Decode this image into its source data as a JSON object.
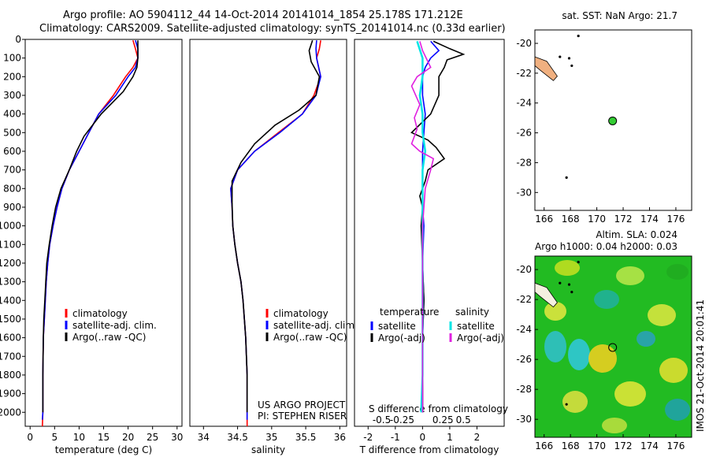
{
  "header": {
    "line1": "Argo profile: AO 5904112_44 14-Oct-2014 20141014_1854 25.178S 171.212E",
    "line2": "Climatology: CARS2009. Satellite-adjusted climatology: synTS_20141014.nc (0.33d earlier)"
  },
  "colors": {
    "climatology": "#ff0000",
    "satellite": "#0000ff",
    "argo": "#000000",
    "salinity_sat": "#00e5e5",
    "salinity_argo": "#e020e0",
    "land": "#f0b080",
    "float": "#33cc33"
  },
  "chart_data": [
    {
      "type": "line",
      "xlabel": "temperature (deg C)",
      "ylim": [
        2075,
        0
      ],
      "xlim": [
        -1,
        31
      ],
      "xticks": [
        0,
        5,
        10,
        15,
        20,
        25,
        30
      ],
      "yticks": [
        0,
        100,
        200,
        300,
        400,
        500,
        600,
        700,
        800,
        900,
        1000,
        1100,
        1200,
        1300,
        1400,
        1500,
        1600,
        1700,
        1800,
        1900,
        2000
      ],
      "legend": [
        "climatology",
        "satellite-adj. clim.",
        "Argo(..raw -QC)"
      ],
      "series": [
        {
          "name": "climatology",
          "color": "climatology",
          "x": [
            21,
            21.5,
            22,
            21,
            19.5,
            17,
            14,
            12,
            10,
            8,
            6.5,
            5.5,
            4.7,
            4,
            3.6,
            3.3,
            3.1,
            2.9,
            2.7,
            2.6,
            2.6,
            2.5
          ],
          "y": [
            5,
            50,
            100,
            150,
            200,
            300,
            400,
            500,
            600,
            700,
            800,
            900,
            1000,
            1100,
            1200,
            1300,
            1400,
            1500,
            1600,
            1800,
            2000,
            2075
          ]
        },
        {
          "name": "satellite-adj. clim.",
          "color": "satellite",
          "x": [
            21.5,
            22,
            22,
            21.5,
            20,
            17.5,
            14,
            12,
            10,
            8,
            6.5,
            5.5,
            4.7,
            4,
            3.6,
            3.3,
            3.1,
            2.9,
            2.7,
            2.6,
            2.6,
            2.5
          ],
          "y": [
            5,
            50,
            100,
            150,
            200,
            300,
            400,
            500,
            600,
            700,
            800,
            900,
            1000,
            1100,
            1200,
            1300,
            1400,
            1500,
            1600,
            1800,
            2000,
            2040
          ]
        },
        {
          "name": "Argo(..raw -QC)",
          "color": "argo",
          "x": [
            22,
            22,
            22,
            21.8,
            21,
            19,
            14.5,
            11,
            9.5,
            8,
            6.3,
            5.2,
            4.5,
            3.9,
            3.4,
            3.2,
            3,
            2.8,
            2.7,
            2.6,
            2.6
          ],
          "y": [
            5,
            50,
            100,
            150,
            200,
            280,
            400,
            520,
            600,
            700,
            800,
            900,
            1000,
            1100,
            1200,
            1300,
            1400,
            1500,
            1600,
            1800,
            2000
          ]
        }
      ]
    },
    {
      "type": "line",
      "xlabel": "salinity",
      "ylim": [
        2075,
        0
      ],
      "xlim": [
        33.8,
        36.1
      ],
      "xticks": [
        34,
        34.5,
        35,
        35.5,
        36
      ],
      "xticklabels": [
        "34",
        "34.5",
        "35",
        "35.5",
        "36"
      ],
      "legend": [
        "climatology",
        "satellite-adj. clim.",
        "Argo(..raw -QC)"
      ],
      "annotation": [
        "US ARGO PROJECT",
        "PI: STEPHEN RISER"
      ],
      "series": [
        {
          "name": "climatology",
          "color": "climatology",
          "x": [
            35.72,
            35.7,
            35.66,
            35.72,
            35.62,
            35.45,
            35.1,
            34.75,
            34.5,
            34.4,
            34.42,
            34.43,
            34.46,
            34.5,
            34.55,
            34.58,
            34.6,
            34.62,
            34.63,
            34.64,
            34.64
          ],
          "y": [
            5,
            50,
            100,
            200,
            300,
            400,
            500,
            600,
            700,
            800,
            900,
            1000,
            1100,
            1200,
            1300,
            1400,
            1500,
            1600,
            1700,
            1800,
            2075
          ]
        },
        {
          "name": "satellite-adj. clim.",
          "color": "satellite",
          "x": [
            35.66,
            35.65,
            35.66,
            35.72,
            35.65,
            35.45,
            35.12,
            34.75,
            34.5,
            34.4,
            34.42,
            34.43,
            34.46,
            34.5,
            34.55,
            34.58,
            34.6,
            34.62,
            34.63,
            34.64,
            34.64
          ],
          "y": [
            5,
            50,
            100,
            200,
            300,
            400,
            500,
            600,
            700,
            800,
            900,
            1000,
            1100,
            1200,
            1300,
            1400,
            1500,
            1600,
            1700,
            1800,
            2040
          ]
        },
        {
          "name": "Argo(..raw -QC)",
          "color": "argo",
          "x": [
            35.6,
            35.55,
            35.58,
            35.7,
            35.65,
            35.4,
            35.05,
            34.75,
            34.55,
            34.42,
            34.42,
            34.43,
            34.46,
            34.5,
            34.55,
            34.58,
            34.6,
            34.62,
            34.63,
            34.64,
            34.64
          ],
          "y": [
            5,
            60,
            120,
            200,
            300,
            380,
            460,
            560,
            660,
            760,
            880,
            1000,
            1100,
            1200,
            1300,
            1400,
            1500,
            1600,
            1700,
            1800,
            2000
          ]
        }
      ]
    },
    {
      "type": "line",
      "xlabel": "T difference from climatology",
      "annotation": "S difference from climatology",
      "ylim": [
        2075,
        0
      ],
      "xlim": [
        -2.5,
        3
      ],
      "xticks": [
        -2,
        -1,
        0,
        1,
        2
      ],
      "xticklabels": [
        "-2",
        "-1",
        "0",
        "1",
        "2"
      ],
      "top_ticks": [
        -1.5,
        -0.75,
        0.75,
        1.5
      ],
      "top_ticklabels": [
        "-0.5",
        "-0.25",
        "0.25",
        "0.5"
      ],
      "legend_left_title": "temperature",
      "legend_right_title": "salinity",
      "legend": [
        "satellite",
        "Argo(-adj)",
        "satellite",
        "Argo(-adj)"
      ],
      "series": [
        {
          "name": "satellite",
          "color": "satellite",
          "x": [
            0.3,
            0.6,
            0.3,
            0.1,
            0,
            0,
            0.1,
            0.05,
            0,
            0,
            0,
            0,
            0.05,
            0,
            0.05,
            0,
            0,
            0
          ],
          "y": [
            10,
            60,
            100,
            150,
            200,
            300,
            400,
            500,
            600,
            700,
            800,
            900,
            1000,
            1200,
            1400,
            1600,
            1800,
            2000
          ]
        },
        {
          "name": "Argo(-adj)",
          "color": "argo",
          "x": [
            0.4,
            1,
            1.5,
            0.9,
            0.8,
            0.6,
            0.6,
            0.3,
            -0.4,
            0.2,
            0.5,
            0.8,
            0.2,
            0.1,
            -0.1,
            0,
            -0.05,
            0,
            0.05,
            0,
            0,
            0
          ],
          "y": [
            10,
            50,
            80,
            110,
            150,
            200,
            300,
            400,
            500,
            540,
            580,
            640,
            700,
            760,
            840,
            900,
            1000,
            1200,
            1400,
            1600,
            1800,
            2000
          ]
        },
        {
          "name": "salinity satellite",
          "color": "salinity_sat",
          "x": [
            -0.2,
            0,
            0,
            -0.1,
            0,
            0,
            0.1,
            0,
            0,
            0,
            0,
            0,
            0,
            -0.05
          ],
          "y": [
            10,
            100,
            200,
            300,
            400,
            500,
            600,
            700,
            800,
            1000,
            1200,
            1500,
            1800,
            2000
          ]
        },
        {
          "name": "salinity Argo(-adj)",
          "color": "salinity_argo",
          "x": [
            -0.1,
            0,
            0.3,
            -0.2,
            -0.4,
            -0.1,
            -0.3,
            -0.2,
            -0.4,
            -0.1,
            0.4,
            0.3,
            0.1,
            0,
            0,
            0
          ],
          "y": [
            10,
            60,
            150,
            200,
            250,
            350,
            420,
            480,
            560,
            600,
            640,
            700,
            800,
            1000,
            1500,
            2000
          ]
        }
      ]
    }
  ],
  "map_top": {
    "title": "sat. SST: NaN Argo: 21.7",
    "xticks": [
      "166",
      "168",
      "170",
      "172",
      "174",
      "176"
    ],
    "yticks": [
      "-20",
      "-22",
      "-24",
      "-26",
      "-28",
      "-30"
    ],
    "float_position": [
      171.2,
      -25.2
    ]
  },
  "map_bottom": {
    "title1": "Altim. SLA: 0.024",
    "title2": "Argo h1000: 0.04 h2000: 0.03",
    "xticks": [
      "166",
      "168",
      "170",
      "172",
      "174",
      "176"
    ],
    "yticks": [
      "-20",
      "-22",
      "-24",
      "-26",
      "-28",
      "-30"
    ],
    "float_position": [
      171.2,
      -25.2
    ]
  },
  "side_stamp": "IMOS 21-Oct-2014 20:01:41"
}
